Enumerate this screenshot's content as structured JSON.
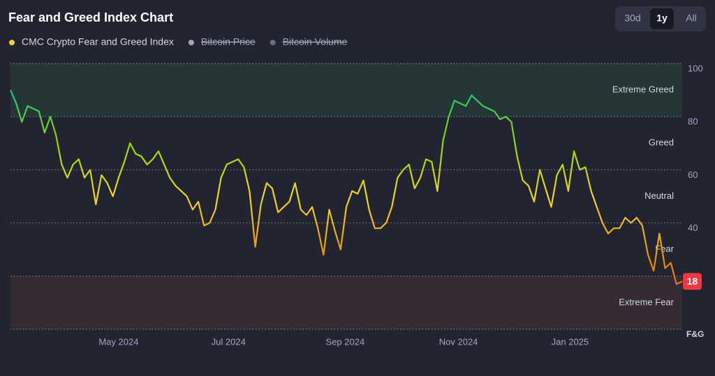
{
  "chart_data": {
    "type": "line",
    "title": "Fear and Greed Index Chart",
    "range_buttons": [
      "30d",
      "1y",
      "All"
    ],
    "selected_range": "1y",
    "series": [
      {
        "name": "CMC Crypto Fear and Greed Index",
        "color": "#f3d42f",
        "values": [
          90,
          85,
          78,
          84,
          83,
          82,
          74,
          80,
          73,
          62,
          57,
          62,
          64,
          57,
          60,
          47,
          58,
          55,
          50,
          57,
          63,
          70,
          66,
          65,
          62,
          64,
          67,
          62,
          57,
          54,
          52,
          50,
          45,
          48,
          39,
          40,
          45,
          57,
          62,
          63,
          64,
          61,
          52,
          31,
          47,
          55,
          53,
          44,
          46,
          48,
          55,
          45,
          43,
          46,
          38,
          28,
          45,
          37,
          30,
          46,
          52,
          51,
          56,
          45,
          38,
          38,
          40,
          46,
          57,
          60,
          62,
          53,
          57,
          64,
          63,
          52,
          71,
          80,
          86,
          85,
          84,
          88,
          86,
          84,
          83,
          82,
          79,
          80,
          78,
          65,
          56,
          54,
          48,
          60,
          53,
          46,
          58,
          62,
          52,
          67,
          60,
          61,
          52,
          46,
          40,
          36,
          38,
          38,
          42,
          40,
          42,
          39,
          28,
          22,
          36,
          23,
          25,
          17,
          18
        ]
      }
    ],
    "hidden_series": [
      {
        "name": "Bitcoin Price",
        "color": "#a1a7bb"
      },
      {
        "name": "Bitcoin Volume",
        "color": "#616e85"
      }
    ],
    "color_stops": [
      {
        "value": 0,
        "color": "#ea3943"
      },
      {
        "value": 25,
        "color": "#ea8c00"
      },
      {
        "value": 50,
        "color": "#f3d42f"
      },
      {
        "value": 70,
        "color": "#93d900"
      },
      {
        "value": 90,
        "color": "#16c784"
      }
    ],
    "xlim": [
      0,
      118
    ],
    "xticks": [
      {
        "value": 19,
        "label": "May 2024"
      },
      {
        "value": 38.3,
        "label": "Jul 2024"
      },
      {
        "value": 58.8,
        "label": "Sep 2024"
      },
      {
        "value": 78.7,
        "label": "Nov 2024"
      },
      {
        "value": 98.3,
        "label": "Jan 2025"
      }
    ],
    "ylim": [
      0,
      100
    ],
    "yticks": [
      40,
      60,
      80,
      100
    ],
    "y_label": "F&G",
    "zones": [
      {
        "label": "Extreme Greed",
        "from": 80,
        "to": 100,
        "band": "#243636"
      },
      {
        "label": "Greed",
        "from": 60,
        "to": 80
      },
      {
        "label": "Neutral",
        "from": 40,
        "to": 60
      },
      {
        "label": "Fear",
        "from": 20,
        "to": 40
      },
      {
        "label": "Extreme Fear",
        "from": 0,
        "to": 20,
        "band": "#362a33"
      }
    ],
    "last_badge_color": "#ea3943"
  }
}
